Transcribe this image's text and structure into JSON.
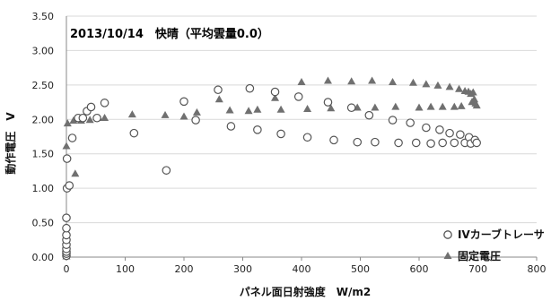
{
  "chart_data": {
    "type": "scatter",
    "title": "2013/10/14　快晴（平均雲量0.0）",
    "xlabel": "パネル面日射強度　W/m2",
    "ylabel": "動作電圧　V",
    "xlim": [
      0,
      800
    ],
    "ylim": [
      0,
      3.5
    ],
    "x_ticks": [
      0,
      100,
      200,
      300,
      400,
      500,
      600,
      700,
      800
    ],
    "y_ticks": [
      0.0,
      0.5,
      1.0,
      1.5,
      2.0,
      2.5,
      3.0,
      3.5
    ],
    "x_tick_labels": [
      "0",
      "100",
      "200",
      "300",
      "400",
      "500",
      "600",
      "700",
      "800"
    ],
    "y_tick_labels": [
      "0.00",
      "0.50",
      "1.00",
      "1.50",
      "2.00",
      "2.50",
      "3.00",
      "3.50"
    ],
    "grid": "horizontal",
    "legend_position": "bottom-right",
    "series": [
      {
        "name": "IVカーブトレーサ",
        "marker": "circle-open",
        "color": "#555555",
        "points": [
          [
            0,
            0.02
          ],
          [
            0,
            0.05
          ],
          [
            0,
            0.08
          ],
          [
            0,
            0.12
          ],
          [
            0,
            0.18
          ],
          [
            0,
            0.25
          ],
          [
            0,
            0.32
          ],
          [
            0,
            0.42
          ],
          [
            0,
            0.57
          ],
          [
            1,
            1.43
          ],
          [
            1,
            1.0
          ],
          [
            5,
            1.04
          ],
          [
            10,
            1.73
          ],
          [
            20,
            2.02
          ],
          [
            28,
            2.02
          ],
          [
            35,
            2.12
          ],
          [
            42,
            2.18
          ],
          [
            52,
            2.02
          ],
          [
            65,
            2.24
          ],
          [
            115,
            1.8
          ],
          [
            170,
            1.26
          ],
          [
            200,
            2.26
          ],
          [
            220,
            1.99
          ],
          [
            258,
            2.43
          ],
          [
            280,
            1.9
          ],
          [
            312,
            2.45
          ],
          [
            325,
            1.85
          ],
          [
            355,
            2.4
          ],
          [
            365,
            1.79
          ],
          [
            395,
            2.33
          ],
          [
            410,
            1.74
          ],
          [
            445,
            2.25
          ],
          [
            455,
            1.7
          ],
          [
            485,
            2.17
          ],
          [
            495,
            1.67
          ],
          [
            515,
            2.06
          ],
          [
            525,
            1.67
          ],
          [
            555,
            1.99
          ],
          [
            565,
            1.66
          ],
          [
            585,
            1.95
          ],
          [
            595,
            1.66
          ],
          [
            612,
            1.88
          ],
          [
            620,
            1.65
          ],
          [
            635,
            1.85
          ],
          [
            640,
            1.66
          ],
          [
            652,
            1.8
          ],
          [
            660,
            1.66
          ],
          [
            670,
            1.78
          ],
          [
            678,
            1.66
          ],
          [
            685,
            1.74
          ],
          [
            688,
            1.65
          ],
          [
            695,
            1.7
          ],
          [
            698,
            1.66
          ]
        ]
      },
      {
        "name": "固定電圧",
        "marker": "triangle-filled",
        "color": "#707070",
        "points": [
          [
            0,
            0.02
          ],
          [
            0,
            0.05
          ],
          [
            0,
            0.08
          ],
          [
            0,
            0.12
          ],
          [
            0,
            0.15
          ],
          [
            0,
            0.18
          ],
          [
            0,
            0.22
          ],
          [
            0,
            1.62
          ],
          [
            2,
            1.95
          ],
          [
            12,
            1.99
          ],
          [
            15,
            1.22
          ],
          [
            25,
            1.99
          ],
          [
            40,
            2.0
          ],
          [
            55,
            2.03
          ],
          [
            65,
            2.03
          ],
          [
            112,
            2.08
          ],
          [
            168,
            2.07
          ],
          [
            200,
            2.05
          ],
          [
            222,
            2.11
          ],
          [
            260,
            2.3
          ],
          [
            278,
            2.14
          ],
          [
            310,
            2.13
          ],
          [
            325,
            2.15
          ],
          [
            355,
            2.32
          ],
          [
            365,
            2.15
          ],
          [
            400,
            2.55
          ],
          [
            410,
            2.16
          ],
          [
            445,
            2.57
          ],
          [
            450,
            2.17
          ],
          [
            485,
            2.56
          ],
          [
            495,
            2.18
          ],
          [
            520,
            2.57
          ],
          [
            525,
            2.18
          ],
          [
            555,
            2.55
          ],
          [
            560,
            2.19
          ],
          [
            590,
            2.54
          ],
          [
            600,
            2.18
          ],
          [
            612,
            2.52
          ],
          [
            620,
            2.19
          ],
          [
            632,
            2.5
          ],
          [
            640,
            2.19
          ],
          [
            652,
            2.48
          ],
          [
            660,
            2.19
          ],
          [
            668,
            2.45
          ],
          [
            672,
            2.2
          ],
          [
            678,
            2.42
          ],
          [
            684,
            2.41
          ],
          [
            688,
            2.38
          ],
          [
            690,
            2.26
          ],
          [
            692,
            2.4
          ],
          [
            694,
            2.3
          ],
          [
            696,
            2.24
          ],
          [
            698,
            2.21
          ]
        ]
      }
    ]
  }
}
